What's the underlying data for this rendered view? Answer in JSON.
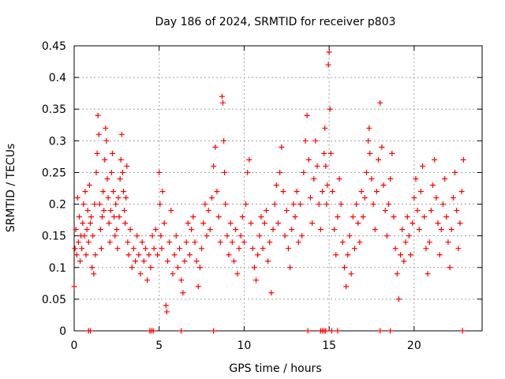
{
  "chart_data": {
    "type": "scatter",
    "title": "Day 186 of 2024, SRMTID for receiver p803",
    "xlabel": "GPS time / hours",
    "ylabel": "SRMTID / TECUs",
    "xlim": [
      0,
      24
    ],
    "ylim": [
      0,
      0.45
    ],
    "x_ticks": [
      0,
      5,
      10,
      15,
      20
    ],
    "x_tick_labels": [
      "0",
      "5",
      "10",
      "15",
      "20"
    ],
    "y_ticks": [
      0,
      0.05,
      0.1,
      0.15,
      0.2,
      0.25,
      0.3,
      0.35,
      0.4,
      0.45
    ],
    "y_tick_labels": [
      "0",
      "0.05",
      "0.1",
      "0.15",
      "0.2",
      "0.25",
      "0.3",
      "0.35",
      "0.4",
      "0.45"
    ],
    "grid": true,
    "marker": "plus",
    "color": "#ff0000",
    "series": [
      {
        "name": "SRMTID",
        "points": [
          [
            0.0,
            0.07
          ],
          [
            0.05,
            0.13
          ],
          [
            0.1,
            0.16
          ],
          [
            0.15,
            0.12
          ],
          [
            0.2,
            0.21
          ],
          [
            0.25,
            0.14
          ],
          [
            0.3,
            0.18
          ],
          [
            0.35,
            0.11
          ],
          [
            0.4,
            0.15
          ],
          [
            0.45,
            0.13
          ],
          [
            0.5,
            0.17
          ],
          [
            0.55,
            0.2
          ],
          [
            0.6,
            0.15
          ],
          [
            0.65,
            0.22
          ],
          [
            0.7,
            0.12
          ],
          [
            0.75,
            0.16
          ],
          [
            0.8,
            0.19
          ],
          [
            0.85,
            0.14
          ],
          [
            0.9,
            0.23
          ],
          [
            0.95,
            0.17
          ],
          [
            1.0,
            0.18
          ],
          [
            1.05,
            0.1
          ],
          [
            1.1,
            0.15
          ],
          [
            1.15,
            0.09
          ],
          [
            1.2,
            0.2
          ],
          [
            1.25,
            0.12
          ],
          [
            1.3,
            0.25
          ],
          [
            1.35,
            0.28
          ],
          [
            1.4,
            0.34
          ],
          [
            1.45,
            0.31
          ],
          [
            1.5,
            0.2
          ],
          [
            1.55,
            0.16
          ],
          [
            1.6,
            0.13
          ],
          [
            1.65,
            0.18
          ],
          [
            1.7,
            0.22
          ],
          [
            1.75,
            0.19
          ],
          [
            1.8,
            0.27
          ],
          [
            1.85,
            0.32
          ],
          [
            1.9,
            0.3
          ],
          [
            1.95,
            0.24
          ],
          [
            2.0,
            0.21
          ],
          [
            2.05,
            0.17
          ],
          [
            2.1,
            0.14
          ],
          [
            2.15,
            0.19
          ],
          [
            2.2,
            0.25
          ],
          [
            2.25,
            0.28
          ],
          [
            2.3,
            0.22
          ],
          [
            2.35,
            0.18
          ],
          [
            2.4,
            0.15
          ],
          [
            2.45,
            0.2
          ],
          [
            2.5,
            0.16
          ],
          [
            2.55,
            0.13
          ],
          [
            2.6,
            0.21
          ],
          [
            2.65,
            0.18
          ],
          [
            2.7,
            0.24
          ],
          [
            2.75,
            0.27
          ],
          [
            2.8,
            0.31
          ],
          [
            2.85,
            0.25
          ],
          [
            2.9,
            0.22
          ],
          [
            2.95,
            0.19
          ],
          [
            3.0,
            0.17
          ],
          [
            3.05,
            0.21
          ],
          [
            3.1,
            0.26
          ],
          [
            3.15,
            0.14
          ],
          [
            3.2,
            0.12
          ],
          [
            3.3,
            0.16
          ],
          [
            3.4,
            0.1
          ],
          [
            3.5,
            0.13
          ],
          [
            3.6,
            0.11
          ],
          [
            3.7,
            0.15
          ],
          [
            3.8,
            0.12
          ],
          [
            3.9,
            0.09
          ],
          [
            4.0,
            0.14
          ],
          [
            4.1,
            0.11
          ],
          [
            4.2,
            0.13
          ],
          [
            4.3,
            0.08
          ],
          [
            4.4,
            0.12
          ],
          [
            4.5,
            0.1
          ],
          [
            4.6,
            0.15
          ],
          [
            4.7,
            0.13
          ],
          [
            4.8,
            0.16
          ],
          [
            4.9,
            0.12
          ],
          [
            5.0,
            0.25
          ],
          [
            5.05,
            0.2
          ],
          [
            5.1,
            0.15
          ],
          [
            5.15,
            0.13
          ],
          [
            5.2,
            0.22
          ],
          [
            5.3,
            0.17
          ],
          [
            5.4,
            0.04
          ],
          [
            5.45,
            0.03
          ],
          [
            5.5,
            0.11
          ],
          [
            5.6,
            0.14
          ],
          [
            5.7,
            0.19
          ],
          [
            5.8,
            0.09
          ],
          [
            5.9,
            0.12
          ],
          [
            6.0,
            0.15
          ],
          [
            6.1,
            0.1
          ],
          [
            6.2,
            0.13
          ],
          [
            6.3,
            0.08
          ],
          [
            6.4,
            0.06
          ],
          [
            6.5,
            0.11
          ],
          [
            6.6,
            0.14
          ],
          [
            6.7,
            0.17
          ],
          [
            6.8,
            0.12
          ],
          [
            6.9,
            0.16
          ],
          [
            7.0,
            0.18
          ],
          [
            7.1,
            0.14
          ],
          [
            7.2,
            0.11
          ],
          [
            7.3,
            0.07
          ],
          [
            7.4,
            0.1
          ],
          [
            7.5,
            0.13
          ],
          [
            7.6,
            0.17
          ],
          [
            7.7,
            0.2
          ],
          [
            7.8,
            0.15
          ],
          [
            7.9,
            0.19
          ],
          [
            8.0,
            0.16
          ],
          [
            8.1,
            0.21
          ],
          [
            8.2,
            0.26
          ],
          [
            8.3,
            0.29
          ],
          [
            8.4,
            0.22
          ],
          [
            8.5,
            0.18
          ],
          [
            8.6,
            0.14
          ],
          [
            8.7,
            0.37
          ],
          [
            8.75,
            0.36
          ],
          [
            8.8,
            0.3
          ],
          [
            8.85,
            0.25
          ],
          [
            8.9,
            0.2
          ],
          [
            9.0,
            0.15
          ],
          [
            9.1,
            0.12
          ],
          [
            9.2,
            0.17
          ],
          [
            9.3,
            0.14
          ],
          [
            9.4,
            0.11
          ],
          [
            9.5,
            0.16
          ],
          [
            9.6,
            0.09
          ],
          [
            9.7,
            0.13
          ],
          [
            9.8,
            0.15
          ],
          [
            9.9,
            0.18
          ],
          [
            10.0,
            0.14
          ],
          [
            10.1,
            0.2
          ],
          [
            10.2,
            0.25
          ],
          [
            10.3,
            0.27
          ],
          [
            10.4,
            0.17
          ],
          [
            10.5,
            0.13
          ],
          [
            10.6,
            0.1
          ],
          [
            10.7,
            0.08
          ],
          [
            10.8,
            0.12
          ],
          [
            10.9,
            0.15
          ],
          [
            11.0,
            0.18
          ],
          [
            11.1,
            0.13
          ],
          [
            11.2,
            0.17
          ],
          [
            11.3,
            0.19
          ],
          [
            11.4,
            0.11
          ],
          [
            11.5,
            0.14
          ],
          [
            11.6,
            0.06
          ],
          [
            11.7,
            0.16
          ],
          [
            11.8,
            0.2
          ],
          [
            11.9,
            0.23
          ],
          [
            12.0,
            0.17
          ],
          [
            12.1,
            0.25
          ],
          [
            12.2,
            0.29
          ],
          [
            12.3,
            0.22
          ],
          [
            12.4,
            0.15
          ],
          [
            12.5,
            0.19
          ],
          [
            12.6,
            0.13
          ],
          [
            12.7,
            0.1
          ],
          [
            12.8,
            0.16
          ],
          [
            12.9,
            0.2
          ],
          [
            13.0,
            0.18
          ],
          [
            13.1,
            0.22
          ],
          [
            13.2,
            0.14
          ],
          [
            13.3,
            0.2
          ],
          [
            13.4,
            0.15
          ],
          [
            13.5,
            0.25
          ],
          [
            13.6,
            0.3
          ],
          [
            13.7,
            0.34
          ],
          [
            13.8,
            0.27
          ],
          [
            13.9,
            0.21
          ],
          [
            14.0,
            0.17
          ],
          [
            14.1,
            0.24
          ],
          [
            14.2,
            0.3
          ],
          [
            14.3,
            0.26
          ],
          [
            14.4,
            0.2
          ],
          [
            14.5,
            0.16
          ],
          [
            14.6,
            0.22
          ],
          [
            14.7,
            0.28
          ],
          [
            14.75,
            0.32
          ],
          [
            14.8,
            0.26
          ],
          [
            14.85,
            0.2
          ],
          [
            14.9,
            0.23
          ],
          [
            14.95,
            0.42
          ],
          [
            15.0,
            0.44
          ],
          [
            15.05,
            0.35
          ],
          [
            15.1,
            0.28
          ],
          [
            15.2,
            0.22
          ],
          [
            15.3,
            0.16
          ],
          [
            15.4,
            0.12
          ],
          [
            15.5,
            0.18
          ],
          [
            15.6,
            0.24
          ],
          [
            15.7,
            0.2
          ],
          [
            15.8,
            0.14
          ],
          [
            15.9,
            0.1
          ],
          [
            16.0,
            0.07
          ],
          [
            16.1,
            0.12
          ],
          [
            16.2,
            0.15
          ],
          [
            16.3,
            0.09
          ],
          [
            16.4,
            0.18
          ],
          [
            16.5,
            0.13
          ],
          [
            16.6,
            0.2
          ],
          [
            16.7,
            0.17
          ],
          [
            16.8,
            0.14
          ],
          [
            16.9,
            0.22
          ],
          [
            17.0,
            0.18
          ],
          [
            17.1,
            0.21
          ],
          [
            17.2,
            0.25
          ],
          [
            17.3,
            0.3
          ],
          [
            17.35,
            0.32
          ],
          [
            17.4,
            0.28
          ],
          [
            17.5,
            0.24
          ],
          [
            17.6,
            0.2
          ],
          [
            17.7,
            0.16
          ],
          [
            17.8,
            0.22
          ],
          [
            17.9,
            0.27
          ],
          [
            18.0,
            0.36
          ],
          [
            18.1,
            0.29
          ],
          [
            18.2,
            0.23
          ],
          [
            18.3,
            0.19
          ],
          [
            18.4,
            0.15
          ],
          [
            18.5,
            0.2
          ],
          [
            18.6,
            0.24
          ],
          [
            18.7,
            0.28
          ],
          [
            18.8,
            0.18
          ],
          [
            18.9,
            0.13
          ],
          [
            19.0,
            0.09
          ],
          [
            19.1,
            0.05
          ],
          [
            19.2,
            0.12
          ],
          [
            19.3,
            0.16
          ],
          [
            19.4,
            0.11
          ],
          [
            19.5,
            0.14
          ],
          [
            19.6,
            0.18
          ],
          [
            19.7,
            0.15
          ],
          [
            19.8,
            0.12
          ],
          [
            19.9,
            0.17
          ],
          [
            20.0,
            0.21
          ],
          [
            20.1,
            0.24
          ],
          [
            20.2,
            0.19
          ],
          [
            20.3,
            0.16
          ],
          [
            20.4,
            0.22
          ],
          [
            20.5,
            0.26
          ],
          [
            20.6,
            0.18
          ],
          [
            20.7,
            0.13
          ],
          [
            20.8,
            0.09
          ],
          [
            20.9,
            0.14
          ],
          [
            21.0,
            0.19
          ],
          [
            21.1,
            0.23
          ],
          [
            21.2,
            0.27
          ],
          [
            21.3,
            0.21
          ],
          [
            21.4,
            0.17
          ],
          [
            21.5,
            0.12
          ],
          [
            21.6,
            0.16
          ],
          [
            21.7,
            0.2
          ],
          [
            21.8,
            0.24
          ],
          [
            21.9,
            0.18
          ],
          [
            22.0,
            0.14
          ],
          [
            22.1,
            0.1
          ],
          [
            22.2,
            0.16
          ],
          [
            22.3,
            0.21
          ],
          [
            22.4,
            0.25
          ],
          [
            22.5,
            0.19
          ],
          [
            22.6,
            0.13
          ],
          [
            22.7,
            0.17
          ],
          [
            22.8,
            0.22
          ],
          [
            22.9,
            0.27
          ]
        ],
        "zero_points": [
          0.85,
          0.95,
          4.45,
          4.55,
          4.65,
          6.3,
          8.2,
          13.75,
          14.5,
          14.6,
          14.7,
          14.8,
          15.15,
          15.5,
          18.0,
          18.6,
          22.85
        ]
      }
    ]
  }
}
